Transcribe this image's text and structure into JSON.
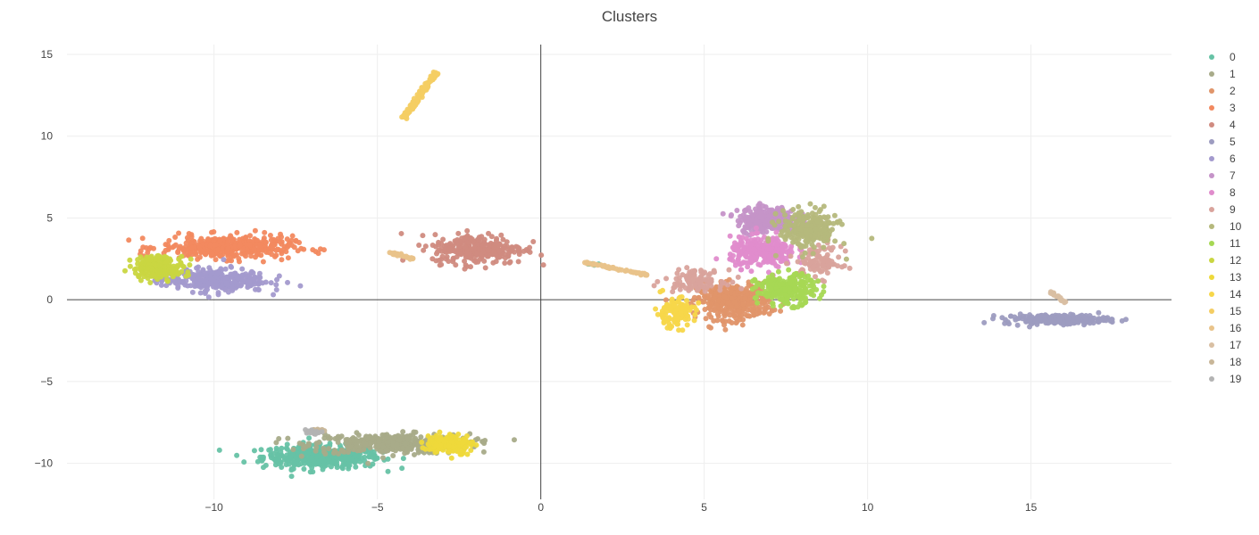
{
  "chart_data": {
    "type": "scatter",
    "title": "Clusters",
    "xlabel": "",
    "ylabel": "",
    "xlim": [
      -14.5,
      19.3
    ],
    "ylim": [
      -12.2,
      15.6
    ],
    "x_ticks": [
      -10,
      -5,
      0,
      5,
      10,
      15
    ],
    "x_tick_labels": [
      "−10",
      "−5",
      "0",
      "5",
      "10",
      "15"
    ],
    "y_ticks": [
      -10,
      -5,
      0,
      5,
      10,
      15
    ],
    "y_tick_labels": [
      "−10",
      "−5",
      "0",
      "5",
      "10",
      "15"
    ],
    "grid": true,
    "zero_lines": true,
    "legend_position": "right",
    "series": [
      {
        "name": "0",
        "color": "#66c2a5",
        "clusters": [
          {
            "cx": -6.7,
            "cy": -9.6,
            "sx": 0.9,
            "sy": 0.35,
            "n": 420
          },
          {
            "cx": 1.6,
            "cy": 2.2,
            "sx": 0.15,
            "sy": 0.05,
            "n": 6
          }
        ]
      },
      {
        "name": "1",
        "color": "#a8ab89",
        "clusters": [
          {
            "cx": -4.6,
            "cy": -8.8,
            "sx": 1.2,
            "sy": 0.3,
            "n": 380
          }
        ]
      },
      {
        "name": "2",
        "color": "#e0956a",
        "clusters": [
          {
            "cx": 5.9,
            "cy": -0.1,
            "sx": 0.55,
            "sy": 0.55,
            "n": 380
          }
        ]
      },
      {
        "name": "3",
        "color": "#f2895f",
        "clusters": [
          {
            "cx": -9.6,
            "cy": 3.2,
            "sx": 1.0,
            "sy": 0.35,
            "n": 400
          }
        ]
      },
      {
        "name": "4",
        "color": "#d08b80",
        "clusters": [
          {
            "cx": -1.9,
            "cy": 3.1,
            "sx": 0.7,
            "sy": 0.45,
            "n": 300
          }
        ]
      },
      {
        "name": "5",
        "color": "#9d9cc0",
        "clusters": [
          {
            "cx": 15.8,
            "cy": -1.2,
            "sx": 0.8,
            "sy": 0.15,
            "n": 220
          }
        ]
      },
      {
        "name": "6",
        "color": "#a39acd",
        "clusters": [
          {
            "cx": -10.0,
            "cy": 1.2,
            "sx": 0.8,
            "sy": 0.35,
            "n": 320
          }
        ]
      },
      {
        "name": "7",
        "color": "#c593c8",
        "clusters": [
          {
            "cx": 6.9,
            "cy": 4.9,
            "sx": 0.45,
            "sy": 0.4,
            "n": 250
          }
        ]
      },
      {
        "name": "8",
        "color": "#e08ccc",
        "clusters": [
          {
            "cx": 6.8,
            "cy": 2.9,
            "sx": 0.5,
            "sy": 0.45,
            "n": 280
          }
        ]
      },
      {
        "name": "9",
        "color": "#d9a39c",
        "clusters": [
          {
            "cx": 4.7,
            "cy": 1.2,
            "sx": 0.45,
            "sy": 0.3,
            "n": 110
          },
          {
            "cx": 8.5,
            "cy": 2.3,
            "sx": 0.35,
            "sy": 0.5,
            "n": 100
          }
        ]
      },
      {
        "name": "10",
        "color": "#b5b87c",
        "clusters": [
          {
            "cx": 8.2,
            "cy": 4.3,
            "sx": 0.45,
            "sy": 0.6,
            "n": 240
          }
        ]
      },
      {
        "name": "11",
        "color": "#a6d854",
        "clusters": [
          {
            "cx": 7.5,
            "cy": 0.6,
            "sx": 0.45,
            "sy": 0.45,
            "n": 240
          }
        ]
      },
      {
        "name": "12",
        "color": "#c9d641",
        "clusters": [
          {
            "cx": -11.7,
            "cy": 2.0,
            "sx": 0.4,
            "sy": 0.35,
            "n": 200
          }
        ]
      },
      {
        "name": "13",
        "color": "#eed93a",
        "clusters": [
          {
            "cx": -2.8,
            "cy": -8.8,
            "sx": 0.35,
            "sy": 0.3,
            "n": 160
          }
        ]
      },
      {
        "name": "14",
        "color": "#f7d74a",
        "clusters": [
          {
            "cx": 4.1,
            "cy": -0.8,
            "sx": 0.3,
            "sy": 0.45,
            "n": 130
          }
        ]
      },
      {
        "name": "15",
        "color": "#f4cd63",
        "clusters": [
          {
            "cx": -3.8,
            "cy": 12.5,
            "sx": 0.1,
            "sy": 0.1,
            "n": 160,
            "line": [
              [
                -4.2,
                11.1
              ],
              [
                -3.2,
                13.9
              ]
            ]
          }
        ]
      },
      {
        "name": "16",
        "color": "#e9c38a",
        "clusters": [
          {
            "cx": 2.6,
            "cy": 1.7,
            "sx": 0.1,
            "sy": 0.06,
            "n": 60,
            "line": [
              [
                1.3,
                2.3
              ],
              [
                3.3,
                1.5
              ]
            ]
          },
          {
            "cx": -4.2,
            "cy": 2.7,
            "sx": 0.12,
            "sy": 0.06,
            "n": 25,
            "line": [
              [
                -4.6,
                2.9
              ],
              [
                -3.9,
                2.5
              ]
            ]
          }
        ]
      },
      {
        "name": "17",
        "color": "#d9bfa3",
        "clusters": [
          {
            "cx": 15.9,
            "cy": 0.1,
            "sx": 0.08,
            "sy": 0.1,
            "n": 20,
            "line": [
              [
                15.6,
                0.5
              ],
              [
                16.1,
                -0.2
              ]
            ]
          }
        ]
      },
      {
        "name": "18",
        "color": "#c8b698",
        "clusters": [
          {
            "cx": -6.8,
            "cy": -8.0,
            "sx": 0.1,
            "sy": 0.1,
            "n": 20
          }
        ]
      },
      {
        "name": "19",
        "color": "#b3b3b3",
        "clusters": [
          {
            "cx": -7.0,
            "cy": -8.1,
            "sx": 0.12,
            "sy": 0.1,
            "n": 18
          }
        ]
      }
    ]
  }
}
